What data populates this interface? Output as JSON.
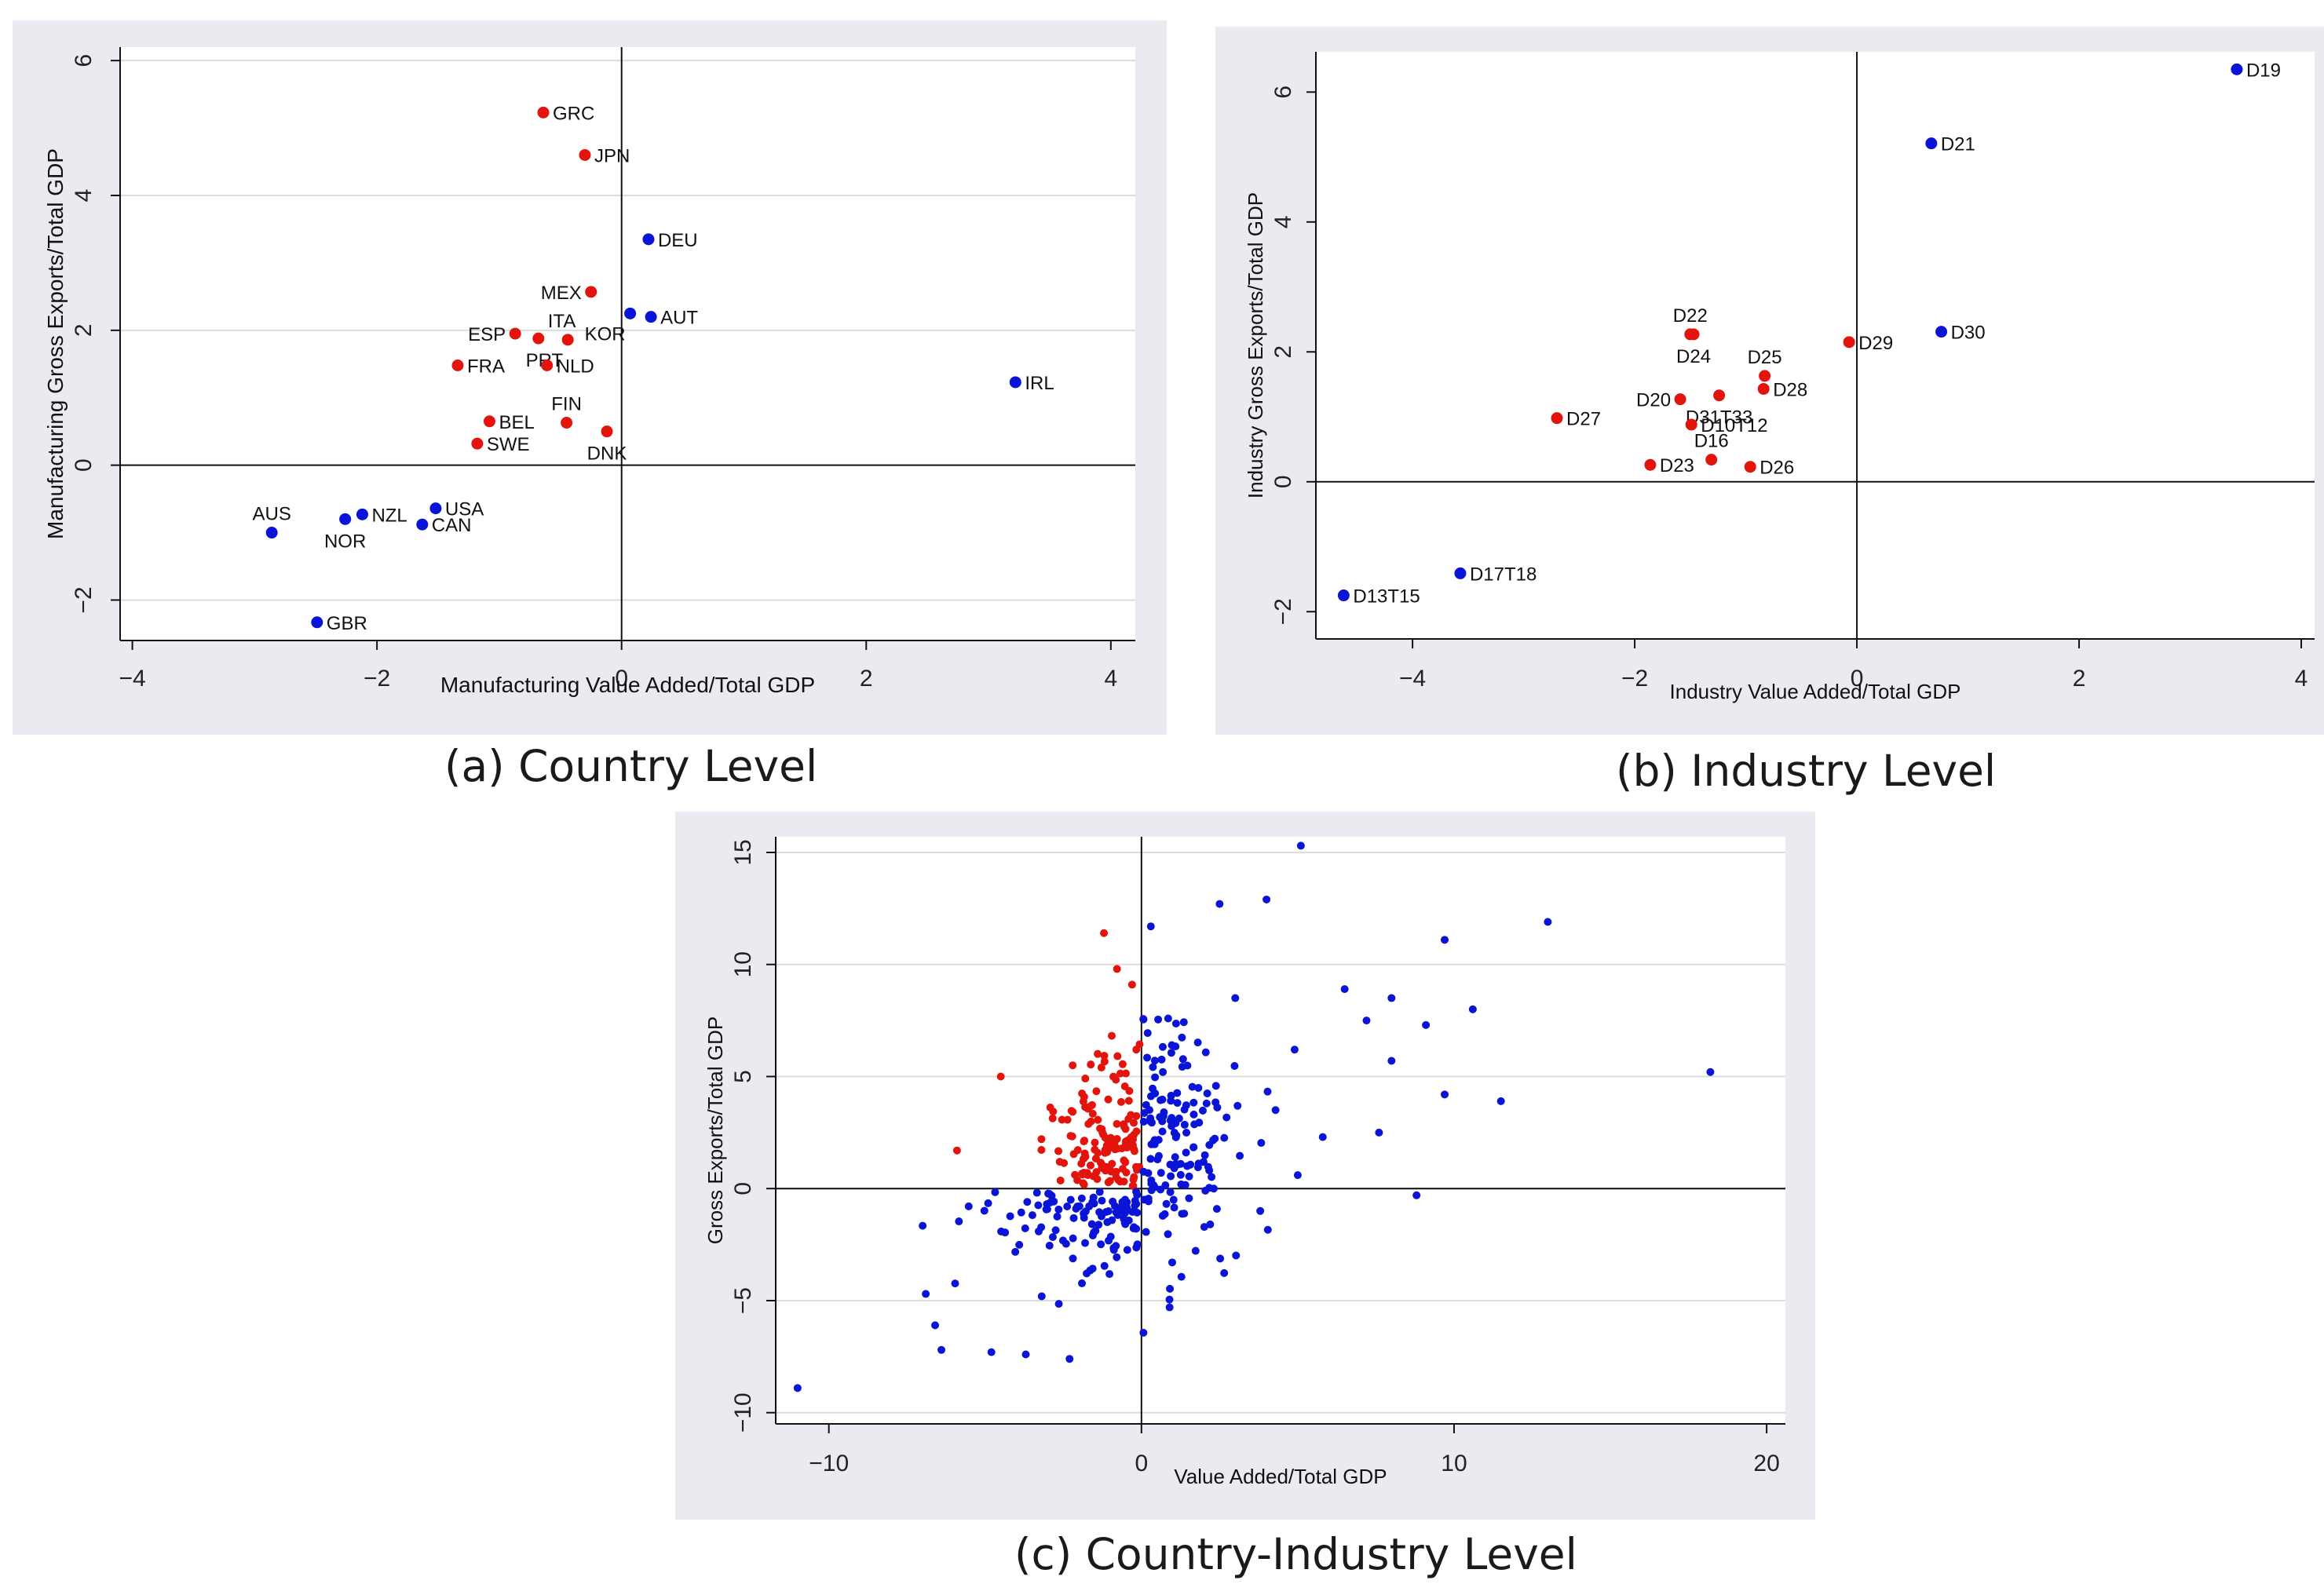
{
  "captions": {
    "a": "(a) Country Level",
    "b": "(b) Industry Level",
    "c": "(c) Country-Industry  Level"
  },
  "colors": {
    "red": "#e3140c",
    "blue": "#0a14d6",
    "grid": "#dcdcdc",
    "axis": "#111111"
  },
  "chart_data": [
    {
      "type": "scatter",
      "id": "a",
      "title": "",
      "xlabel": "Manufacturing Value Added/Total GDP",
      "ylabel": "Manufacturing Gross Exports/Total GDP",
      "xlim": [
        -4.1,
        4.2
      ],
      "ylim": [
        -2.6,
        6.2
      ],
      "xticks": [
        -4,
        -2,
        0,
        2,
        4
      ],
      "yticks": [
        -2,
        0,
        2,
        4,
        6
      ],
      "grid": true,
      "reference_lines": {
        "x": 0,
        "y": 0
      },
      "points": [
        {
          "label": "GRC",
          "x": -0.64,
          "y": 5.23,
          "color": "red",
          "pos": "r"
        },
        {
          "label": "JPN",
          "x": -0.3,
          "y": 4.6,
          "color": "red",
          "pos": "r"
        },
        {
          "label": "DEU",
          "x": 0.22,
          "y": 3.35,
          "color": "blue",
          "pos": "r"
        },
        {
          "label": "MEX",
          "x": -0.25,
          "y": 2.57,
          "color": "red",
          "pos": "l"
        },
        {
          "label": "KOR",
          "x": 0.07,
          "y": 2.25,
          "color": "blue",
          "pos": "bl"
        },
        {
          "label": "AUT",
          "x": 0.24,
          "y": 2.2,
          "color": "blue",
          "pos": "r"
        },
        {
          "label": "ESP",
          "x": -0.87,
          "y": 1.95,
          "color": "red",
          "pos": "l"
        },
        {
          "label": "ITA",
          "x": -0.68,
          "y": 1.88,
          "color": "red",
          "pos": "tr"
        },
        {
          "label": "PRT",
          "x": -0.44,
          "y": 1.86,
          "color": "red",
          "pos": "bl"
        },
        {
          "label": "NLD",
          "x": -0.61,
          "y": 1.48,
          "color": "red",
          "pos": "r"
        },
        {
          "label": "FRA",
          "x": -1.34,
          "y": 1.48,
          "color": "red",
          "pos": "r"
        },
        {
          "label": "IRL",
          "x": 3.22,
          "y": 1.23,
          "color": "blue",
          "pos": "r"
        },
        {
          "label": "FIN",
          "x": -0.45,
          "y": 0.63,
          "color": "red",
          "pos": "t"
        },
        {
          "label": "BEL",
          "x": -1.08,
          "y": 0.65,
          "color": "red",
          "pos": "r"
        },
        {
          "label": "DNK",
          "x": -0.12,
          "y": 0.5,
          "color": "red",
          "pos": "b"
        },
        {
          "label": "SWE",
          "x": -1.18,
          "y": 0.32,
          "color": "red",
          "pos": "r"
        },
        {
          "label": "USA",
          "x": -1.52,
          "y": -0.64,
          "color": "blue",
          "pos": "r"
        },
        {
          "label": "NZL",
          "x": -2.12,
          "y": -0.73,
          "color": "blue",
          "pos": "r"
        },
        {
          "label": "CAN",
          "x": -1.63,
          "y": -0.88,
          "color": "blue",
          "pos": "r"
        },
        {
          "label": "NOR",
          "x": -2.26,
          "y": -0.8,
          "color": "blue",
          "pos": "b"
        },
        {
          "label": "AUS",
          "x": -2.86,
          "y": -1.0,
          "color": "blue",
          "pos": "t"
        },
        {
          "label": "GBR",
          "x": -2.49,
          "y": -2.33,
          "color": "blue",
          "pos": "r"
        }
      ]
    },
    {
      "type": "scatter",
      "id": "b",
      "title": "",
      "xlabel": "Industry Value Added/Total GDP",
      "ylabel": "Industry Gross Exports/Total GDP",
      "xlim": [
        -4.87,
        4.12
      ],
      "ylim": [
        -2.42,
        6.62
      ],
      "xticks": [
        -4,
        -2,
        0,
        2,
        4
      ],
      "yticks": [
        -2,
        0,
        2,
        4,
        6
      ],
      "grid": false,
      "reference_lines": {
        "x": 0,
        "y": 0
      },
      "points": [
        {
          "label": "D19",
          "x": 3.42,
          "y": 6.35,
          "color": "blue",
          "pos": "r"
        },
        {
          "label": "D21",
          "x": 0.67,
          "y": 5.21,
          "color": "blue",
          "pos": "r"
        },
        {
          "label": "D30",
          "x": 0.76,
          "y": 2.31,
          "color": "blue",
          "pos": "r"
        },
        {
          "label": "D22",
          "x": -1.5,
          "y": 2.27,
          "color": "red",
          "pos": "t"
        },
        {
          "label": "D24",
          "x": -1.47,
          "y": 2.27,
          "color": "red",
          "pos": "b"
        },
        {
          "label": "D29",
          "x": -0.07,
          "y": 2.15,
          "color": "red",
          "pos": "r"
        },
        {
          "label": "D25",
          "x": -0.83,
          "y": 1.63,
          "color": "red",
          "pos": "t"
        },
        {
          "label": "D28",
          "x": -0.84,
          "y": 1.43,
          "color": "red",
          "pos": "r"
        },
        {
          "label": "D20",
          "x": -1.59,
          "y": 1.27,
          "color": "red",
          "pos": "l"
        },
        {
          "label": "D31T33",
          "x": -1.24,
          "y": 1.33,
          "color": "red",
          "pos": "b"
        },
        {
          "label": "D27",
          "x": -2.7,
          "y": 0.98,
          "color": "red",
          "pos": "r"
        },
        {
          "label": "D10T12",
          "x": -1.49,
          "y": 0.88,
          "color": "red",
          "pos": "r"
        },
        {
          "label": "D16",
          "x": -1.31,
          "y": 0.34,
          "color": "red",
          "pos": "t"
        },
        {
          "label": "D23",
          "x": -1.86,
          "y": 0.26,
          "color": "red",
          "pos": "r"
        },
        {
          "label": "D26",
          "x": -0.96,
          "y": 0.23,
          "color": "red",
          "pos": "r"
        },
        {
          "label": "D17T18",
          "x": -3.57,
          "y": -1.41,
          "color": "blue",
          "pos": "r"
        },
        {
          "label": "D13T15",
          "x": -4.62,
          "y": -1.75,
          "color": "blue",
          "pos": "r"
        }
      ]
    },
    {
      "type": "scatter",
      "id": "c",
      "title": "",
      "xlabel": "Value Added/Total GDP",
      "ylabel": "Gross Exports/Total GDP",
      "xlim": [
        -11.7,
        20.6
      ],
      "ylim": [
        -10.5,
        15.7
      ],
      "xticks": [
        -10,
        0,
        10,
        20
      ],
      "yticks": [
        -10,
        -5,
        0,
        5,
        10,
        15
      ],
      "grid": true,
      "reference_lines": {
        "x": 0,
        "y": 0
      },
      "point_count": 420,
      "colors_by_quadrant": "red where x < 0 and y > 0, otherwise blue"
    }
  ]
}
